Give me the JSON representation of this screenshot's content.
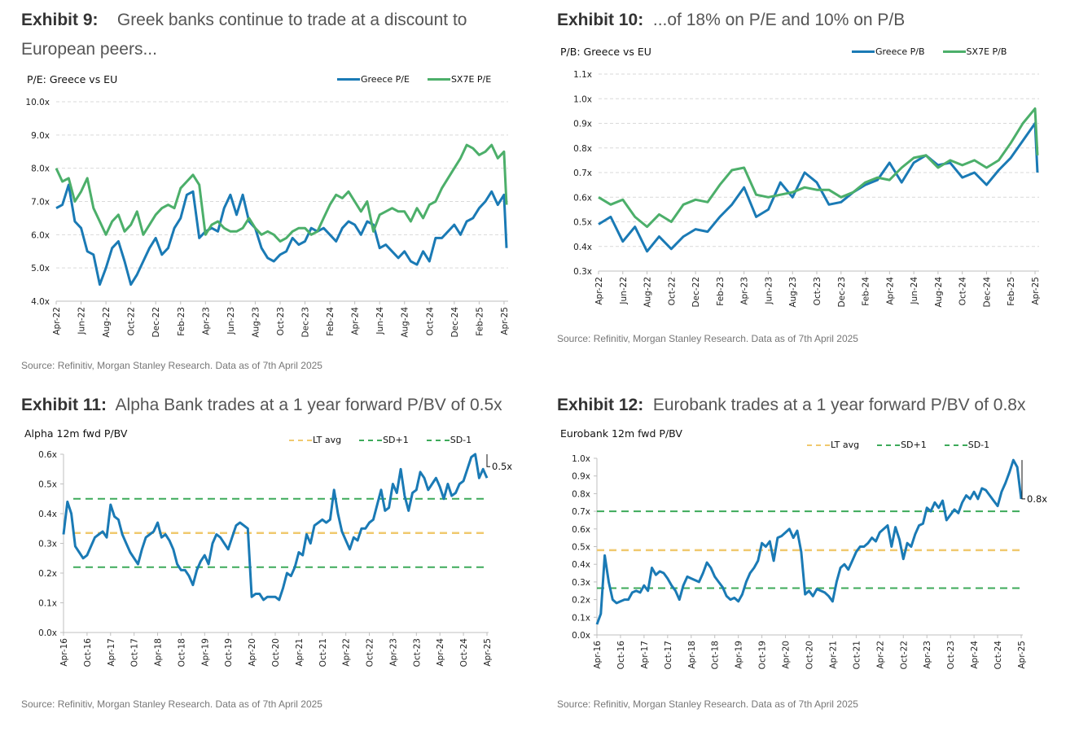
{
  "exhibits": [
    {
      "label": "Exhibit 9:",
      "title_line1": "Greek banks continue to trade at a discount to",
      "title_line2": "European peers...",
      "source": "Source: Refinitiv, Morgan Stanley Research. Data as of 7th April 2025"
    },
    {
      "label": "Exhibit 10:",
      "title_line1": "...of 18% on P/E and 10% on P/B",
      "source": "Source: Refinitiv, Morgan Stanley Research. Data as of 7th April 2025"
    },
    {
      "label": "Exhibit 11:",
      "title_line1": "Alpha Bank trades at a 1 year forward P/BV of 0.5x",
      "source": "Source: Refinitiv, Morgan Stanley Research. Data as of 7th April 2025"
    },
    {
      "label": "Exhibit 12:",
      "title_line1": "Eurobank trades at a 1 year forward P/BV of 0.8x",
      "source": "Source: Refinitiv, Morgan Stanley Research. Data as of 7th April 2025"
    }
  ],
  "colors": {
    "greece": "#1a7ab5",
    "sx7e": "#4caf6a",
    "lt_avg": "#f0c96e",
    "sd": "#3daa5a"
  },
  "chart_data": [
    {
      "type": "line",
      "title": "P/E: Greece vs EU",
      "xlabel": "",
      "ylabel": "",
      "ylim": [
        4.0,
        10.0
      ],
      "y_ticks": [
        "4.0x",
        "5.0x",
        "6.0x",
        "7.0x",
        "8.0x",
        "9.0x",
        "10.0x"
      ],
      "x_ticks": [
        "Apr-22",
        "Jun-22",
        "Aug-22",
        "Oct-22",
        "Dec-22",
        "Feb-23",
        "Apr-23",
        "Jun-23",
        "Aug-23",
        "Oct-23",
        "Dec-23",
        "Feb-24",
        "Apr-24",
        "Jun-24",
        "Aug-24",
        "Oct-24",
        "Dec-24",
        "Feb-25",
        "Apr-25"
      ],
      "grid": true,
      "legend": "top-right",
      "x_months": [
        0,
        0.5,
        1,
        1.5,
        2,
        2.5,
        3,
        3.5,
        4,
        4.5,
        5,
        5.5,
        6,
        6.5,
        7,
        7.5,
        8,
        8.5,
        9,
        9.5,
        10,
        10.5,
        11,
        11.5,
        12,
        12.5,
        13,
        13.5,
        14,
        14.5,
        15,
        15.5,
        16,
        16.5,
        17,
        17.5,
        18,
        18.5,
        19,
        19.5,
        20,
        20.5,
        21,
        21.5,
        22,
        22.5,
        23,
        23.5,
        24,
        24.5,
        25,
        25.5,
        26,
        26.5,
        27,
        27.5,
        28,
        28.5,
        29,
        29.5,
        30,
        30.5,
        31,
        31.5,
        32,
        32.5,
        33,
        33.5,
        34,
        34.5,
        35,
        35.5,
        36,
        36.2
      ],
      "series": [
        {
          "name": "Greece P/E",
          "values": [
            6.8,
            6.9,
            7.5,
            6.4,
            6.2,
            5.5,
            5.4,
            4.5,
            5.0,
            5.6,
            5.8,
            5.2,
            4.5,
            4.8,
            5.2,
            5.6,
            5.9,
            5.4,
            5.6,
            6.2,
            6.5,
            7.2,
            7.3,
            5.9,
            6.1,
            6.2,
            6.1,
            6.8,
            7.2,
            6.6,
            7.2,
            6.4,
            6.2,
            5.6,
            5.3,
            5.2,
            5.4,
            5.5,
            5.9,
            5.7,
            5.8,
            6.2,
            6.1,
            6.2,
            6.0,
            5.8,
            6.2,
            6.4,
            6.3,
            6.0,
            6.4,
            6.3,
            5.6,
            5.7,
            5.5,
            5.3,
            5.5,
            5.2,
            5.1,
            5.5,
            5.2,
            5.9,
            5.9,
            6.1,
            6.3,
            6.0,
            6.4,
            6.5,
            6.8,
            7.0,
            7.3,
            6.9,
            7.2,
            5.6
          ]
        },
        {
          "name": "SX7E P/E",
          "values": [
            8.0,
            7.6,
            7.7,
            7.0,
            7.3,
            7.7,
            6.8,
            6.4,
            6.0,
            6.4,
            6.6,
            6.1,
            6.3,
            6.7,
            6.0,
            6.3,
            6.6,
            6.8,
            6.9,
            6.8,
            7.4,
            7.6,
            7.8,
            7.5,
            6.0,
            6.3,
            6.4,
            6.2,
            6.1,
            6.1,
            6.2,
            6.5,
            6.2,
            6.0,
            6.1,
            6.0,
            5.8,
            5.9,
            6.1,
            6.2,
            6.2,
            6.0,
            6.1,
            6.5,
            6.9,
            7.2,
            7.1,
            7.3,
            7.0,
            6.7,
            7.0,
            6.1,
            6.6,
            6.7,
            6.8,
            6.7,
            6.7,
            6.4,
            6.8,
            6.5,
            6.9,
            7.0,
            7.4,
            7.7,
            8.0,
            8.3,
            8.7,
            8.6,
            8.4,
            8.5,
            8.7,
            8.3,
            8.5,
            6.9
          ]
        }
      ]
    },
    {
      "type": "line",
      "title": "P/B: Greece vs EU",
      "xlabel": "",
      "ylabel": "",
      "ylim": [
        0.3,
        1.1
      ],
      "y_ticks": [
        "0.3x",
        "0.4x",
        "0.5x",
        "0.6x",
        "0.7x",
        "0.8x",
        "0.9x",
        "1.0x",
        "1.1x"
      ],
      "x_ticks": [
        "Apr-22",
        "Jun-22",
        "Aug-22",
        "Oct-22",
        "Dec-22",
        "Feb-23",
        "Apr-23",
        "Jun-23",
        "Aug-23",
        "Oct-23",
        "Dec-23",
        "Feb-24",
        "Apr-24",
        "Jun-24",
        "Aug-24",
        "Oct-24",
        "Dec-24",
        "Feb-25",
        "Apr-25"
      ],
      "grid": true,
      "legend": "top-right",
      "x_months": [
        0,
        1,
        2,
        3,
        4,
        5,
        6,
        7,
        8,
        9,
        10,
        11,
        12,
        13,
        14,
        15,
        16,
        17,
        18,
        19,
        20,
        21,
        22,
        23,
        24,
        25,
        26,
        27,
        28,
        29,
        30,
        31,
        32,
        33,
        34,
        35,
        36,
        36.2
      ],
      "series": [
        {
          "name": "Greece P/B",
          "values": [
            0.49,
            0.52,
            0.42,
            0.48,
            0.38,
            0.44,
            0.39,
            0.44,
            0.47,
            0.46,
            0.52,
            0.57,
            0.64,
            0.52,
            0.55,
            0.66,
            0.6,
            0.7,
            0.66,
            0.57,
            0.58,
            0.62,
            0.65,
            0.67,
            0.74,
            0.66,
            0.74,
            0.77,
            0.73,
            0.74,
            0.68,
            0.7,
            0.65,
            0.71,
            0.76,
            0.83,
            0.9,
            0.7
          ]
        },
        {
          "name": "SX7E P/B",
          "values": [
            0.6,
            0.57,
            0.59,
            0.52,
            0.48,
            0.53,
            0.5,
            0.57,
            0.59,
            0.58,
            0.65,
            0.71,
            0.72,
            0.61,
            0.6,
            0.61,
            0.62,
            0.64,
            0.63,
            0.63,
            0.6,
            0.62,
            0.66,
            0.68,
            0.67,
            0.72,
            0.76,
            0.77,
            0.72,
            0.75,
            0.73,
            0.75,
            0.72,
            0.75,
            0.82,
            0.9,
            0.96,
            0.77
          ]
        }
      ]
    },
    {
      "type": "line",
      "title": "Alpha 12m fwd P/BV",
      "xlabel": "",
      "ylabel": "",
      "ylim": [
        0.0,
        0.6
      ],
      "y_ticks": [
        "0.0x",
        "0.1x",
        "0.2x",
        "0.3x",
        "0.4x",
        "0.5x",
        "0.6x"
      ],
      "x_ticks": [
        "Apr-16",
        "Oct-16",
        "Apr-17",
        "Oct-17",
        "Apr-18",
        "Oct-18",
        "Apr-19",
        "Oct-19",
        "Apr-20",
        "Oct-20",
        "Apr-21",
        "Oct-21",
        "Apr-22",
        "Oct-22",
        "Apr-23",
        "Oct-23",
        "Apr-24",
        "Oct-24",
        "Apr-25"
      ],
      "grid": false,
      "legend": "top-right",
      "annotation": "0.5x",
      "reference_lines": [
        {
          "name": "LT avg",
          "value": 0.335
        },
        {
          "name": "SD+1",
          "value": 0.45
        },
        {
          "name": "SD-1",
          "value": 0.22
        }
      ],
      "x_months": [
        0,
        1,
        2,
        3,
        4,
        5,
        6,
        7,
        8,
        9,
        10,
        11,
        12,
        13,
        14,
        15,
        16,
        17,
        18,
        19,
        20,
        21,
        22,
        23,
        24,
        25,
        26,
        27,
        28,
        29,
        30,
        31,
        32,
        33,
        34,
        35,
        36,
        37,
        38,
        39,
        40,
        41,
        42,
        43,
        44,
        45,
        46,
        47,
        48,
        49,
        50,
        51,
        52,
        53,
        54,
        55,
        56,
        57,
        58,
        59,
        60,
        61,
        62,
        63,
        64,
        65,
        66,
        67,
        68,
        69,
        70,
        71,
        72,
        73,
        74,
        75,
        76,
        77,
        78,
        79,
        80,
        81,
        82,
        83,
        84,
        85,
        86,
        87,
        88,
        89,
        90,
        91,
        92,
        93,
        94,
        95,
        96,
        97,
        98,
        99,
        100,
        101,
        102,
        103,
        104,
        105,
        106,
        107,
        108
      ],
      "series": [
        {
          "name": "Alpha 12m fwd P/BV",
          "values": [
            0.33,
            0.44,
            0.4,
            0.29,
            0.27,
            0.25,
            0.26,
            0.29,
            0.32,
            0.33,
            0.34,
            0.32,
            0.43,
            0.39,
            0.38,
            0.33,
            0.3,
            0.27,
            0.25,
            0.23,
            0.28,
            0.32,
            0.33,
            0.34,
            0.37,
            0.32,
            0.33,
            0.31,
            0.28,
            0.23,
            0.21,
            0.21,
            0.19,
            0.16,
            0.21,
            0.24,
            0.26,
            0.23,
            0.3,
            0.33,
            0.32,
            0.3,
            0.28,
            0.32,
            0.36,
            0.37,
            0.36,
            0.35,
            0.12,
            0.13,
            0.13,
            0.11,
            0.12,
            0.12,
            0.12,
            0.11,
            0.15,
            0.2,
            0.19,
            0.22,
            0.27,
            0.26,
            0.33,
            0.3,
            0.36,
            0.37,
            0.38,
            0.37,
            0.38,
            0.48,
            0.4,
            0.34,
            0.31,
            0.28,
            0.32,
            0.31,
            0.35,
            0.35,
            0.37,
            0.38,
            0.43,
            0.48,
            0.41,
            0.42,
            0.5,
            0.47,
            0.55,
            0.46,
            0.41,
            0.47,
            0.48,
            0.54,
            0.52,
            0.48,
            0.5,
            0.52,
            0.49,
            0.45,
            0.5,
            0.46,
            0.47,
            0.5,
            0.51,
            0.55,
            0.59,
            0.6,
            0.52,
            0.55,
            0.52
          ]
        }
      ]
    },
    {
      "type": "line",
      "title": "Eurobank 12m fwd P/BV",
      "xlabel": "",
      "ylabel": "",
      "ylim": [
        0.0,
        1.0
      ],
      "y_ticks": [
        "0.0x",
        "0.1x",
        "0.2x",
        "0.3x",
        "0.4x",
        "0.5x",
        "0.6x",
        "0.7x",
        "0.8x",
        "0.9x",
        "1.0x"
      ],
      "x_ticks": [
        "Apr-16",
        "Oct-16",
        "Apr-17",
        "Oct-17",
        "Apr-18",
        "Oct-18",
        "Apr-19",
        "Oct-19",
        "Apr-20",
        "Oct-20",
        "Apr-21",
        "Oct-21",
        "Apr-22",
        "Oct-22",
        "Apr-23",
        "Oct-23",
        "Apr-24",
        "Oct-24",
        "Apr-25"
      ],
      "grid": false,
      "legend": "top-right",
      "annotation": "0.8x",
      "reference_lines": [
        {
          "name": "LT avg",
          "value": 0.48
        },
        {
          "name": "SD+1",
          "value": 0.7
        },
        {
          "name": "SD-1",
          "value": 0.265
        }
      ],
      "x_months": [
        0,
        1,
        2,
        3,
        4,
        5,
        6,
        7,
        8,
        9,
        10,
        11,
        12,
        13,
        14,
        15,
        16,
        17,
        18,
        19,
        20,
        21,
        22,
        23,
        24,
        25,
        26,
        27,
        28,
        29,
        30,
        31,
        32,
        33,
        34,
        35,
        36,
        37,
        38,
        39,
        40,
        41,
        42,
        43,
        44,
        45,
        46,
        47,
        48,
        49,
        50,
        51,
        52,
        53,
        54,
        55,
        56,
        57,
        58,
        59,
        60,
        61,
        62,
        63,
        64,
        65,
        66,
        67,
        68,
        69,
        70,
        71,
        72,
        73,
        74,
        75,
        76,
        77,
        78,
        79,
        80,
        81,
        82,
        83,
        84,
        85,
        86,
        87,
        88,
        89,
        90,
        91,
        92,
        93,
        94,
        95,
        96,
        97,
        98,
        99,
        100,
        101,
        102,
        103,
        104,
        105,
        106,
        107,
        108
      ],
      "series": [
        {
          "name": "Eurobank 12m fwd P/BV",
          "values": [
            0.06,
            0.12,
            0.45,
            0.3,
            0.2,
            0.18,
            0.19,
            0.2,
            0.2,
            0.24,
            0.25,
            0.24,
            0.28,
            0.25,
            0.38,
            0.34,
            0.36,
            0.35,
            0.32,
            0.28,
            0.25,
            0.2,
            0.28,
            0.33,
            0.32,
            0.31,
            0.3,
            0.35,
            0.41,
            0.38,
            0.33,
            0.3,
            0.27,
            0.22,
            0.2,
            0.21,
            0.19,
            0.23,
            0.3,
            0.35,
            0.38,
            0.42,
            0.52,
            0.5,
            0.53,
            0.42,
            0.55,
            0.56,
            0.58,
            0.6,
            0.55,
            0.59,
            0.47,
            0.23,
            0.25,
            0.22,
            0.26,
            0.25,
            0.24,
            0.22,
            0.19,
            0.3,
            0.38,
            0.4,
            0.37,
            0.42,
            0.47,
            0.5,
            0.5,
            0.52,
            0.55,
            0.53,
            0.58,
            0.6,
            0.62,
            0.5,
            0.61,
            0.54,
            0.43,
            0.52,
            0.5,
            0.57,
            0.62,
            0.63,
            0.72,
            0.7,
            0.75,
            0.72,
            0.76,
            0.65,
            0.68,
            0.71,
            0.69,
            0.75,
            0.79,
            0.77,
            0.81,
            0.77,
            0.83,
            0.82,
            0.79,
            0.76,
            0.73,
            0.81,
            0.86,
            0.92,
            0.99,
            0.95,
            0.77
          ]
        }
      ]
    }
  ]
}
